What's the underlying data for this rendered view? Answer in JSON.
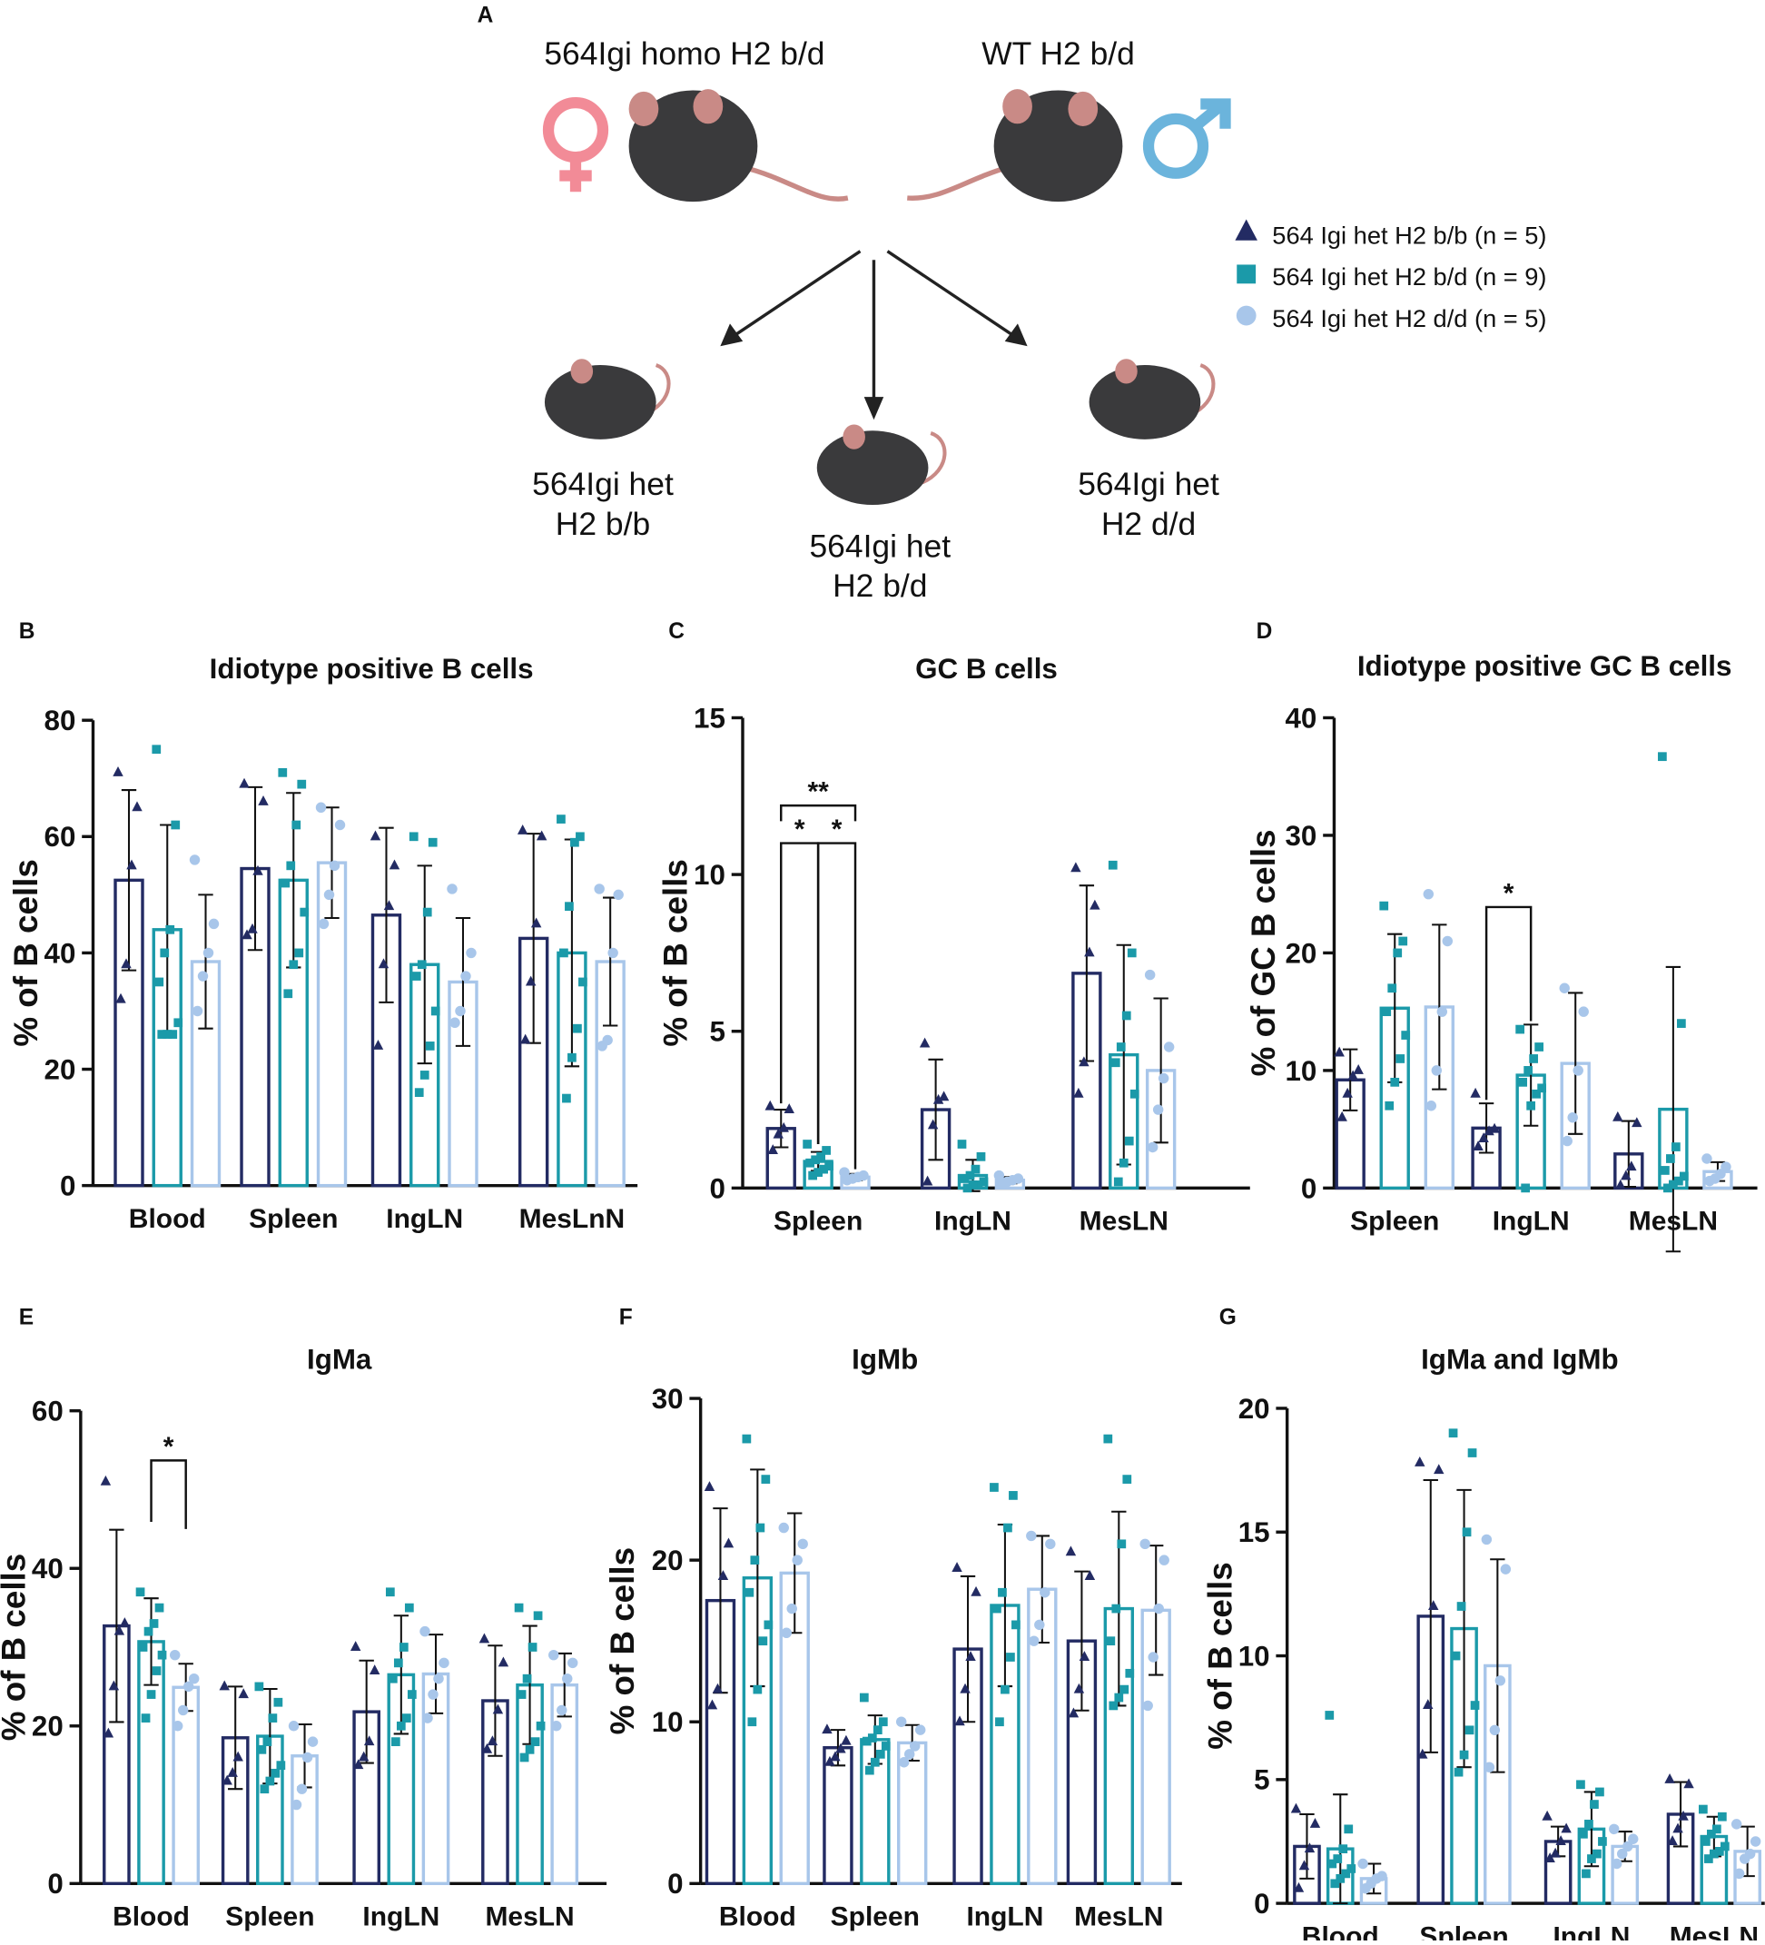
{
  "diagram": {
    "panel": "A",
    "parents": [
      "564Igi homo H2 b/d",
      "WT H2 b/d"
    ],
    "offspring": [
      [
        "564Igi het",
        "H2 b/b"
      ],
      [
        "564Igi het",
        "H2 b/d"
      ],
      [
        "564Igi het",
        "H2 d/d"
      ]
    ]
  },
  "legend": [
    {
      "name": "564 Igi het H2 b/b (n = 5)",
      "color": "#232b63",
      "marker": "triangle"
    },
    {
      "name": "564 Igi het H2 b/d (n = 9)",
      "color": "#1b9aa9",
      "marker": "square"
    },
    {
      "name": "564 Igi het H2 d/d (n = 5)",
      "color": "#a8c6ea",
      "marker": "circle"
    }
  ],
  "chart_data": [
    {
      "panel": "B",
      "type": "bar",
      "title": "Idiotype positive B cells",
      "y_label": "% of B cells",
      "categories": [
        "Blood",
        "Spleen",
        "IngLN",
        "MesLnN"
      ],
      "ylim": [
        0,
        80
      ],
      "yticks": [
        0,
        20,
        40,
        60,
        80
      ],
      "significance": [],
      "series": [
        {
          "values": [
            52.5,
            54.5,
            46.5,
            42.5
          ],
          "errors": [
            15.5,
            14,
            15,
            18
          ],
          "points": [
            [
              71,
              65,
              55,
              38,
              32
            ],
            [
              69,
              66,
              54,
              44,
              43
            ],
            [
              60,
              55,
              48,
              38,
              24
            ],
            [
              61,
              60,
              45,
              35,
              25
            ]
          ]
        },
        {
          "values": [
            44,
            52.5,
            38,
            40
          ],
          "errors": [
            18,
            15,
            17,
            19.5
          ],
          "points": [
            [
              75,
              62,
              44,
              40,
              35,
              28,
              26,
              26,
              26
            ],
            [
              71,
              69,
              62,
              55,
              52,
              47,
              40,
              38,
              33
            ],
            [
              60,
              59,
              47,
              38,
              36,
              30,
              24,
              19,
              16
            ],
            [
              63,
              60,
              59,
              48,
              40,
              35,
              27,
              22,
              15
            ]
          ]
        },
        {
          "values": [
            38.5,
            55.5,
            35,
            38.5
          ],
          "errors": [
            11.5,
            9.5,
            11,
            11
          ],
          "points": [
            [
              56,
              45,
              40,
              36,
              30
            ],
            [
              65,
              62,
              55,
              50,
              45
            ],
            [
              51,
              40,
              36,
              30,
              28
            ],
            [
              51,
              50,
              40,
              25,
              24
            ]
          ]
        }
      ]
    },
    {
      "panel": "C",
      "type": "bar",
      "title": "GC B cells",
      "y_label": "% of B cells",
      "categories": [
        "Spleen",
        "IngLN",
        "MesLN"
      ],
      "ylim": [
        0,
        15
      ],
      "yticks": [
        0,
        5,
        10,
        15
      ],
      "significance": [
        "**",
        "*",
        "*"
      ],
      "series": [
        {
          "values": [
            1.9,
            2.5,
            6.85
          ],
          "errors": [
            0.6,
            1.6,
            2.8
          ],
          "points": [
            [
              2.6,
              2.5,
              1.9,
              1.7,
              1.2
            ],
            [
              4.6,
              2.9,
              2.8,
              2.0,
              0.2
            ],
            [
              10.2,
              9.0,
              7.5,
              4.0,
              3.0
            ]
          ]
        },
        {
          "values": [
            0.85,
            0.4,
            4.25
          ],
          "errors": [
            0.3,
            0.5,
            3.5
          ],
          "points": [
            [
              1.4,
              1.2,
              1.0,
              0.9,
              0.8,
              0.7,
              0.6,
              0.5,
              0.4
            ],
            [
              1.4,
              1.0,
              0.6,
              0.4,
              0.3,
              0.2,
              0.1,
              0.1,
              0.0
            ],
            [
              10.3,
              7.5,
              5.5,
              4.5,
              4.0,
              3.0,
              1.5,
              0.8,
              0.2
            ]
          ]
        },
        {
          "values": [
            0.35,
            0.25,
            3.75
          ],
          "errors": [
            0.1,
            0.1,
            2.3
          ],
          "points": [
            [
              0.5,
              0.4,
              0.35,
              0.3,
              0.25
            ],
            [
              0.4,
              0.3,
              0.25,
              0.2,
              0.15
            ],
            [
              6.8,
              4.5,
              3.5,
              2.5,
              1.3
            ]
          ]
        }
      ]
    },
    {
      "panel": "D",
      "type": "bar",
      "title": "Idiotype positive GC B cells",
      "y_label": "% of GC B cells",
      "categories": [
        "Spleen",
        "IngLN",
        "MesLN"
      ],
      "ylim": [
        0,
        40
      ],
      "yticks": [
        0,
        10,
        20,
        30,
        40
      ],
      "significance": [
        "*"
      ],
      "series": [
        {
          "values": [
            9.2,
            5.1,
            2.9
          ],
          "errors": [
            2.6,
            2.1,
            2.8
          ],
          "points": [
            [
              11.5,
              10,
              9.5,
              8,
              6
            ],
            [
              8,
              5,
              4.8,
              4.2,
              3.5
            ],
            [
              6,
              5.5,
              1.8,
              1,
              0.2
            ]
          ]
        },
        {
          "values": [
            15.3,
            9.6,
            6.7
          ],
          "errors": [
            6.3,
            4.3,
            12.1
          ],
          "points": [
            [
              24,
              21,
              20,
              17,
              15,
              13,
              11,
              9,
              7
            ],
            [
              13.5,
              12,
              11,
              10,
              9,
              8.5,
              8,
              7,
              0
            ],
            [
              36.7,
              14,
              3.5,
              2.5,
              1.5,
              1,
              0.6,
              0.3,
              0
            ]
          ]
        },
        {
          "values": [
            15.4,
            10.6,
            1.4
          ],
          "errors": [
            7,
            6,
            0.8
          ],
          "points": [
            [
              25,
              21,
              15,
              10,
              7
            ],
            [
              17,
              15,
              10,
              6,
              4
            ],
            [
              2.5,
              1.8,
              1.2,
              0.8,
              0.6
            ]
          ]
        }
      ]
    },
    {
      "panel": "E",
      "type": "bar",
      "title": "IgMa",
      "y_label": "% of B cells",
      "categories": [
        "Blood",
        "Spleen",
        "IngLN",
        "MesLN"
      ],
      "ylim": [
        0,
        60
      ],
      "yticks": [
        0,
        20,
        40,
        60
      ],
      "significance": [
        "*"
      ],
      "series": [
        {
          "values": [
            32.7,
            18.5,
            21.8,
            23.2
          ],
          "errors": [
            12.2,
            6.5,
            6.5,
            7
          ],
          "points": [
            [
              51,
              33,
              32,
              25,
              19
            ],
            [
              25,
              24,
              16,
              14,
              13
            ],
            [
              30,
              27,
              18,
              16,
              15
            ],
            [
              31,
              28,
              22,
              18,
              17
            ]
          ]
        },
        {
          "values": [
            30.7,
            18.7,
            26.5,
            25.2
          ],
          "errors": [
            5.5,
            6,
            7.5,
            7.5
          ],
          "points": [
            [
              37,
              35,
              33,
              32,
              30,
              29,
              27,
              24,
              21
            ],
            [
              25,
              23,
              21,
              18,
              17,
              15,
              14,
              13,
              12
            ],
            [
              37,
              35,
              30,
              28,
              26,
              24,
              21,
              20,
              18
            ],
            [
              35,
              34,
              30,
              26,
              24,
              20,
              18,
              17,
              16
            ]
          ]
        },
        {
          "values": [
            24.9,
            16.2,
            26.6,
            25.2
          ],
          "errors": [
            3,
            4,
            5,
            4
          ],
          "points": [
            [
              29,
              26,
              25,
              22,
              20
            ],
            [
              20,
              18,
              16,
              12,
              10
            ],
            [
              32,
              28,
              26,
              24,
              21
            ],
            [
              29,
              28,
              26,
              22,
              20
            ]
          ]
        }
      ]
    },
    {
      "panel": "F",
      "type": "bar",
      "title": "IgMb",
      "y_label": "% of B cells",
      "categories": [
        "Blood",
        "Spleen",
        "IngLN",
        "MesLN"
      ],
      "ylim": [
        0,
        30
      ],
      "yticks": [
        0,
        10,
        20,
        30
      ],
      "significance": [],
      "series": [
        {
          "values": [
            17.5,
            8.4,
            14.5,
            15
          ],
          "errors": [
            5.7,
            1.1,
            4.5,
            4.3
          ],
          "points": [
            [
              24.5,
              21,
              19,
              12,
              11
            ],
            [
              9.5,
              8.8,
              8.3,
              7.8,
              7.5
            ],
            [
              19.5,
              18,
              14,
              12,
              10
            ],
            [
              20.5,
              19,
              14,
              12,
              10.5
            ]
          ]
        },
        {
          "values": [
            18.9,
            8.9,
            17.2,
            17
          ],
          "errors": [
            6.7,
            1.5,
            5,
            6
          ],
          "points": [
            [
              27.5,
              25,
              22,
              20,
              18,
              16,
              15,
              12,
              10
            ],
            [
              11.5,
              10,
              9.5,
              9,
              8.8,
              8.5,
              8,
              7.5,
              7
            ],
            [
              24.5,
              24,
              22,
              18,
              17,
              16,
              14,
              12,
              10
            ],
            [
              27.5,
              25,
              21,
              17,
              15,
              13,
              12,
              11.5,
              11
            ]
          ]
        },
        {
          "values": [
            19.2,
            8.7,
            18.2,
            16.9
          ],
          "errors": [
            3.7,
            1.1,
            3.3,
            4
          ],
          "points": [
            [
              22,
              21,
              20,
              17,
              15.5
            ],
            [
              10,
              9.5,
              8.5,
              8,
              7.5
            ],
            [
              21.5,
              21,
              18,
              16,
              15
            ],
            [
              21,
              20,
              17,
              14,
              11
            ]
          ]
        }
      ]
    },
    {
      "panel": "G",
      "type": "bar",
      "title": "IgMa and IgMb",
      "y_label": "% of B cells",
      "categories": [
        "Blood",
        "Spleen",
        "IngLN",
        "MesLN"
      ],
      "ylim": [
        0,
        20
      ],
      "yticks": [
        0,
        5,
        10,
        15,
        20
      ],
      "significance": [],
      "series": [
        {
          "values": [
            2.3,
            11.6,
            2.5,
            3.6
          ],
          "errors": [
            1.3,
            5.5,
            0.6,
            1.3
          ],
          "points": [
            [
              3.8,
              3.2,
              2.2,
              1.5,
              0.6
            ],
            [
              17.8,
              17.5,
              12,
              8,
              6
            ],
            [
              3.5,
              3,
              2.5,
              2,
              1.8
            ],
            [
              5,
              4.8,
              3.5,
              3,
              2.5
            ]
          ]
        },
        {
          "values": [
            2.2,
            11.1,
            3.0,
            2.7
          ],
          "errors": [
            2.2,
            5.6,
            1.5,
            0.8
          ],
          "points": [
            [
              7.6,
              3.0,
              2.2,
              1.8,
              1.6,
              1.4,
              1.2,
              1.0,
              0.8
            ],
            [
              19,
              18.2,
              15,
              12,
              10,
              8,
              7,
              6,
              5.3
            ],
            [
              4.8,
              4.5,
              4,
              3.2,
              2.8,
              2.5,
              2,
              1.8,
              1.2
            ],
            [
              3.8,
              3.5,
              3,
              2.8,
              2.5,
              2.3,
              2.1,
              2,
              1.8
            ]
          ]
        },
        {
          "values": [
            1.0,
            9.6,
            2.3,
            2.1
          ],
          "errors": [
            0.6,
            4.3,
            0.6,
            1.0
          ],
          "points": [
            [
              1.6,
              1.1,
              1.0,
              0.8,
              0.6
            ],
            [
              14.7,
              13.5,
              9,
              7,
              5.5
            ],
            [
              3,
              2.6,
              2.3,
              2,
              1.6
            ],
            [
              3.2,
              2.5,
              2,
              1.8,
              1.2
            ]
          ]
        }
      ]
    }
  ]
}
